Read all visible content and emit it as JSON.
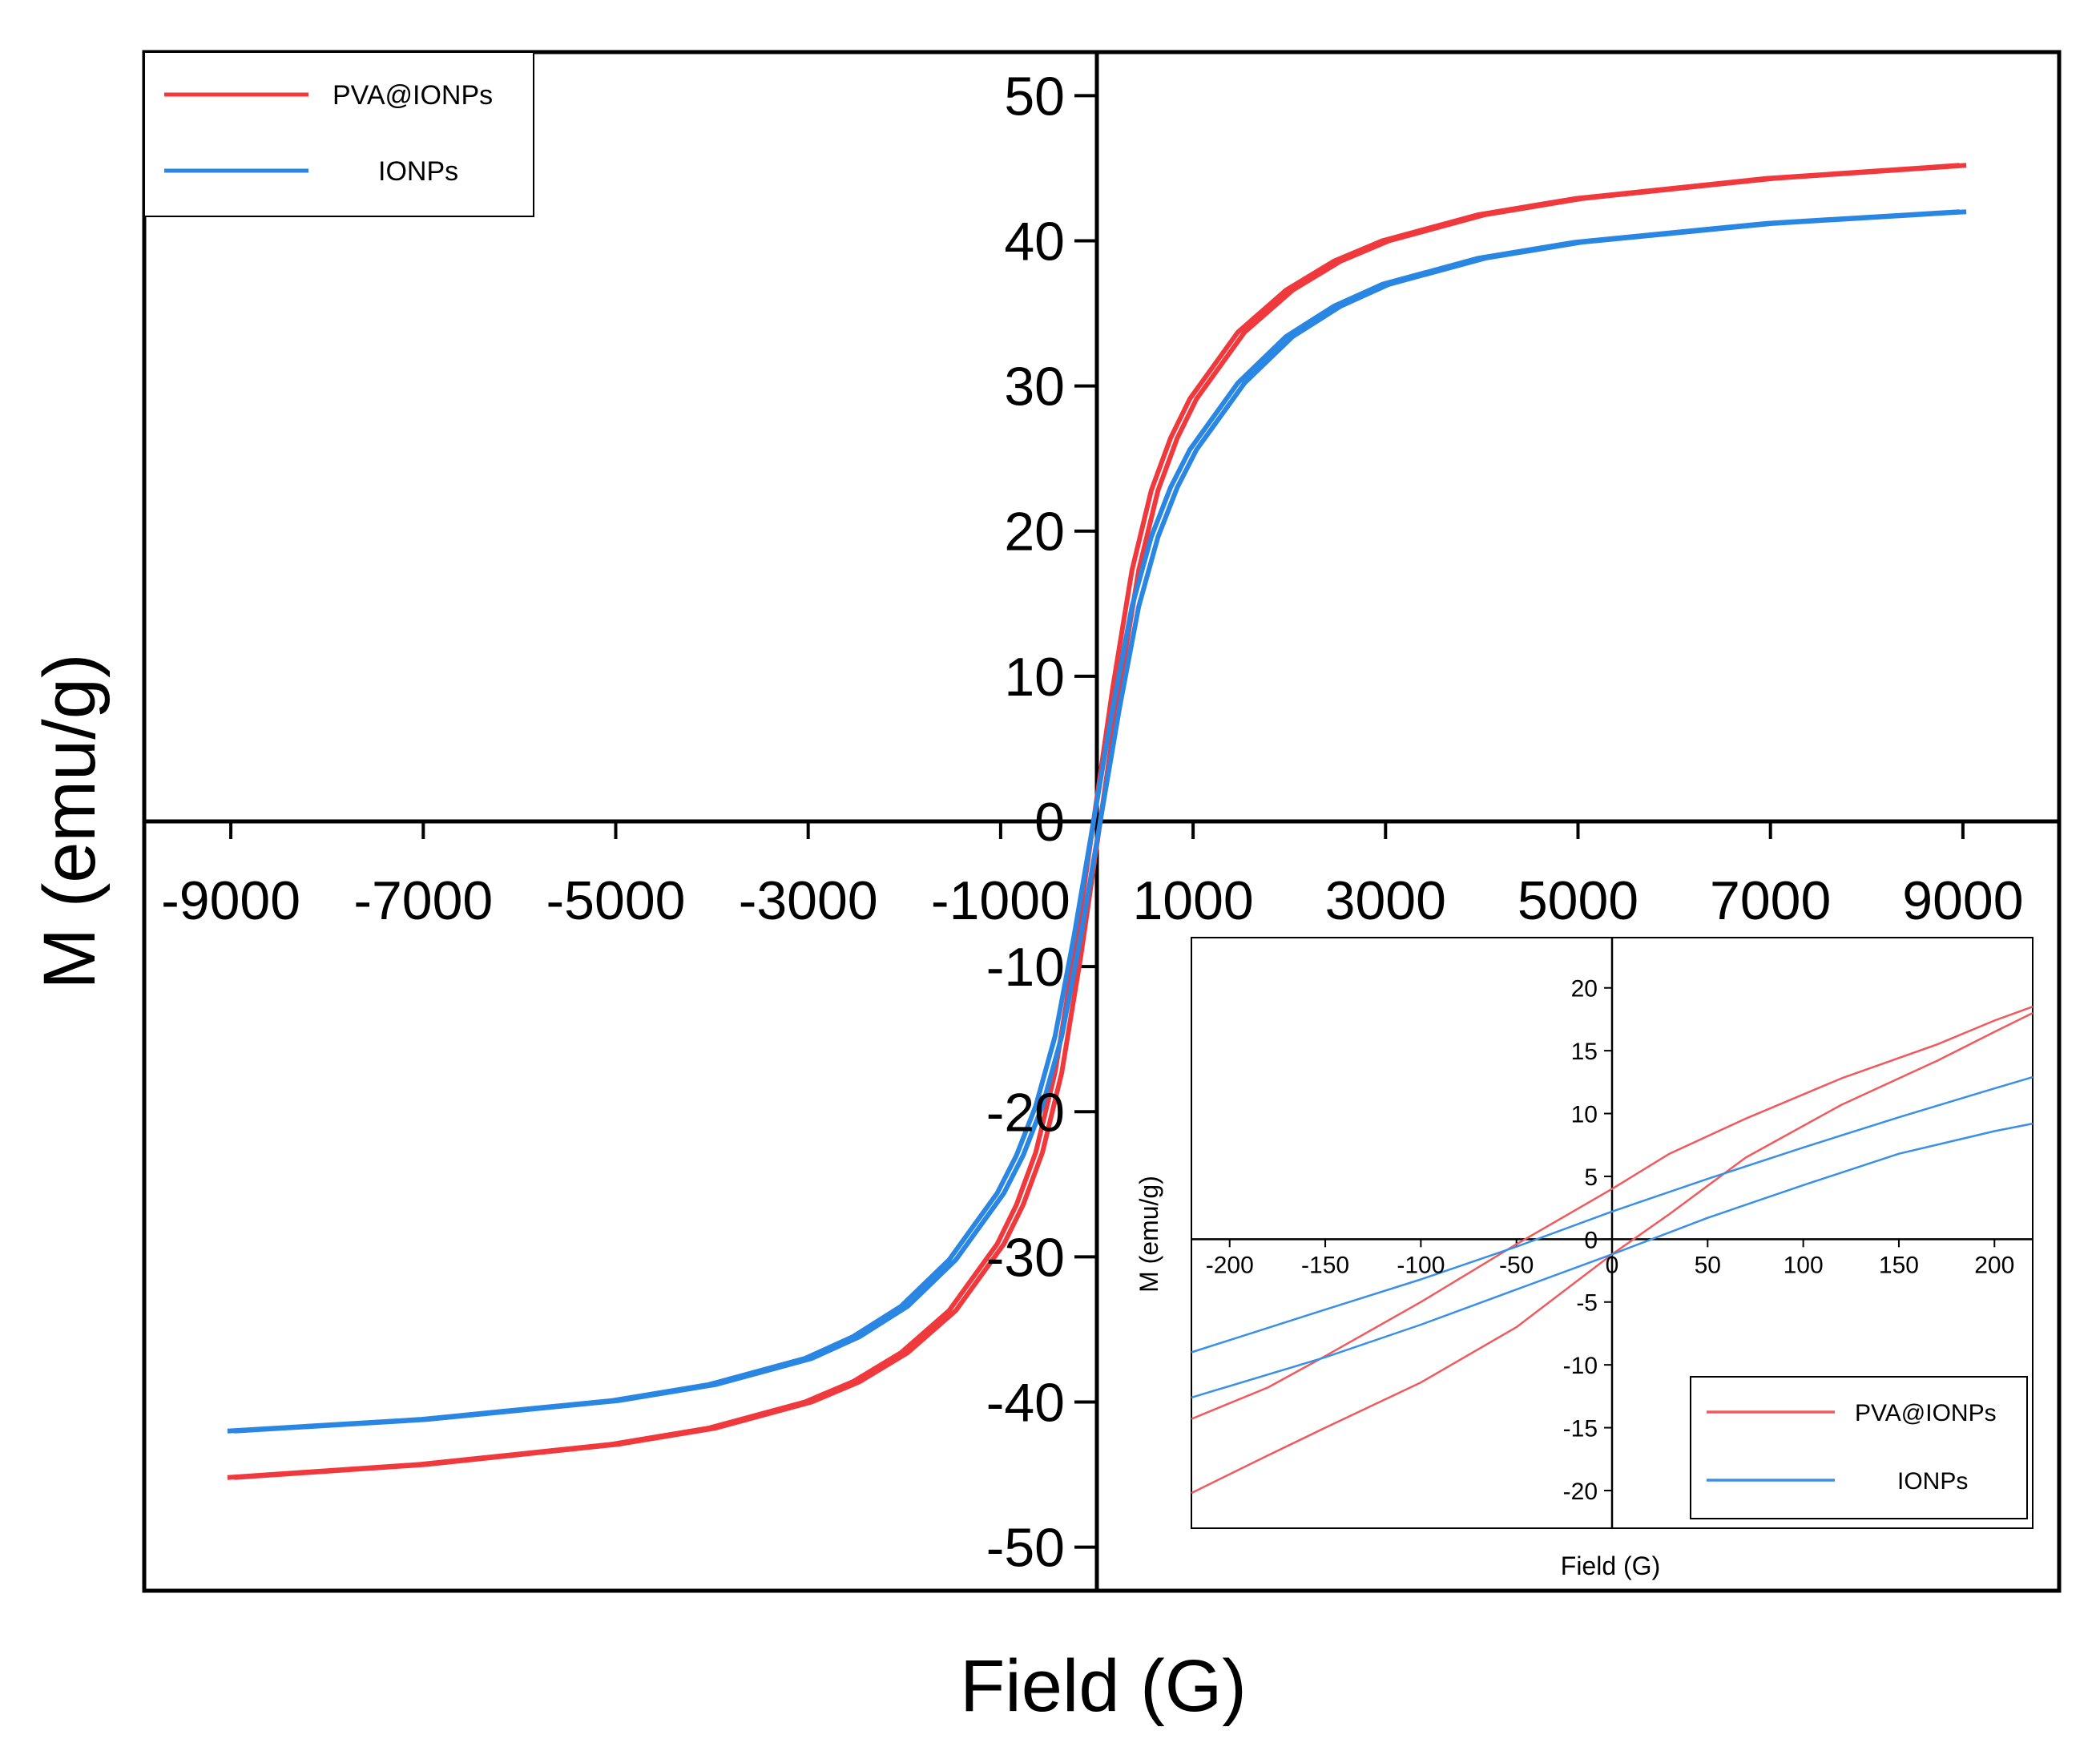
{
  "chart_data": [
    {
      "type": "line",
      "title": "",
      "xlabel": "Field (G)",
      "ylabel": "M (emu/g)",
      "xlim": [
        -9900,
        10000
      ],
      "ylim": [
        -53,
        53
      ],
      "xticks": [
        -9000,
        -7000,
        -5000,
        -3000,
        -1000,
        0,
        1000,
        3000,
        5000,
        7000,
        9000
      ],
      "xtick_labels": [
        "-9000",
        "-7000",
        "-5000",
        "-3000",
        "-1000",
        "0",
        "1000",
        "3000",
        "5000",
        "7000",
        "9000"
      ],
      "yticks": [
        50,
        40,
        30,
        20,
        10,
        0,
        -10,
        -20,
        -30,
        -40,
        -50
      ],
      "ytick_labels": [
        "50",
        "40",
        "30",
        "20",
        "10",
        "0",
        "-10",
        "-20",
        "-30",
        "-40",
        "-50"
      ],
      "legend_position": "top-left",
      "series": [
        {
          "name": "PVA@IONPs",
          "color": "#f0393d",
          "x": [
            -9000,
            -7000,
            -5000,
            -4000,
            -3000,
            -2500,
            -2000,
            -1500,
            -1000,
            -800,
            -600,
            -400,
            -200,
            -100,
            0,
            100,
            200,
            400,
            600,
            800,
            1000,
            1500,
            2000,
            2500,
            3000,
            4000,
            5000,
            7000,
            9000
          ],
          "y": [
            -45.2,
            -44.3,
            -42.9,
            -41.8,
            -40.0,
            -38.6,
            -36.6,
            -33.7,
            -29.1,
            -26.4,
            -22.8,
            -17.3,
            -9.2,
            -4.6,
            0.0,
            4.6,
            9.2,
            17.3,
            22.8,
            26.4,
            29.1,
            33.7,
            36.6,
            38.6,
            40.0,
            41.8,
            42.9,
            44.3,
            45.2
          ]
        },
        {
          "name": "IONPs",
          "color": "#2a86e3",
          "x": [
            -9000,
            -7000,
            -5000,
            -4000,
            -3000,
            -2500,
            -2000,
            -1500,
            -1000,
            -800,
            -600,
            -400,
            -200,
            -100,
            0,
            100,
            200,
            400,
            600,
            800,
            1000,
            1500,
            2000,
            2500,
            3000,
            4000,
            5000,
            7000,
            9000
          ],
          "y": [
            -42.0,
            -41.2,
            -39.9,
            -38.8,
            -37.0,
            -35.5,
            -33.4,
            -30.2,
            -25.6,
            -23.0,
            -19.6,
            -14.8,
            -7.8,
            -3.9,
            0.0,
            3.9,
            7.8,
            14.8,
            19.6,
            23.0,
            25.6,
            30.2,
            33.4,
            35.5,
            37.0,
            38.8,
            39.9,
            41.2,
            42.0
          ]
        }
      ]
    },
    {
      "type": "line",
      "title": "",
      "xlabel": "Field (G)",
      "ylabel": "M (emu/g)",
      "xlim": [
        -220,
        220
      ],
      "ylim": [
        -23,
        24
      ],
      "xticks": [
        -200,
        -150,
        -100,
        -50,
        0,
        50,
        100,
        150,
        200
      ],
      "xtick_labels": [
        "-200",
        "-150",
        "-100",
        "-50",
        "0",
        "50",
        "100",
        "150",
        "200"
      ],
      "yticks": [
        20,
        15,
        10,
        5,
        0,
        -5,
        -10,
        -15,
        -20
      ],
      "ytick_labels": [
        "20",
        "15",
        "10",
        "5",
        "0",
        "-5",
        "-10",
        "-15",
        "-20"
      ],
      "legend_position": "bottom-right",
      "series": [
        {
          "name": "PVA@IONPs",
          "color": "#f05a5e",
          "branches": [
            {
              "x": [
                -220,
                -180,
                -150,
                -100,
                -50,
                0,
                30,
                70,
                120,
                170,
                200,
                220
              ],
              "y": [
                -20.2,
                -17.2,
                -15.0,
                -11.4,
                -7.0,
                -1.2,
                2.0,
                6.5,
                10.7,
                14.2,
                16.5,
                18.0
              ]
            },
            {
              "x": [
                -220,
                -180,
                -150,
                -100,
                -50,
                0,
                30,
                70,
                120,
                170,
                200,
                220
              ],
              "y": [
                -14.3,
                -11.8,
                -9.3,
                -5.0,
                -0.4,
                4.0,
                6.8,
                9.6,
                12.8,
                15.5,
                17.4,
                18.5
              ]
            }
          ]
        },
        {
          "name": "IONPs",
          "color": "#3a90e6",
          "branches": [
            {
              "x": [
                -220,
                -150,
                -100,
                -50,
                0,
                50,
                100,
                150,
                200,
                220
              ],
              "y": [
                -12.6,
                -9.4,
                -6.8,
                -4.0,
                -1.2,
                1.7,
                4.3,
                6.8,
                8.6,
                9.2
              ]
            },
            {
              "x": [
                -220,
                -150,
                -100,
                -50,
                0,
                50,
                100,
                150,
                200,
                220
              ],
              "y": [
                -9.0,
                -5.6,
                -3.2,
                -0.6,
                2.2,
                4.8,
                7.3,
                9.7,
                12.0,
                12.9
              ]
            }
          ]
        }
      ]
    }
  ]
}
